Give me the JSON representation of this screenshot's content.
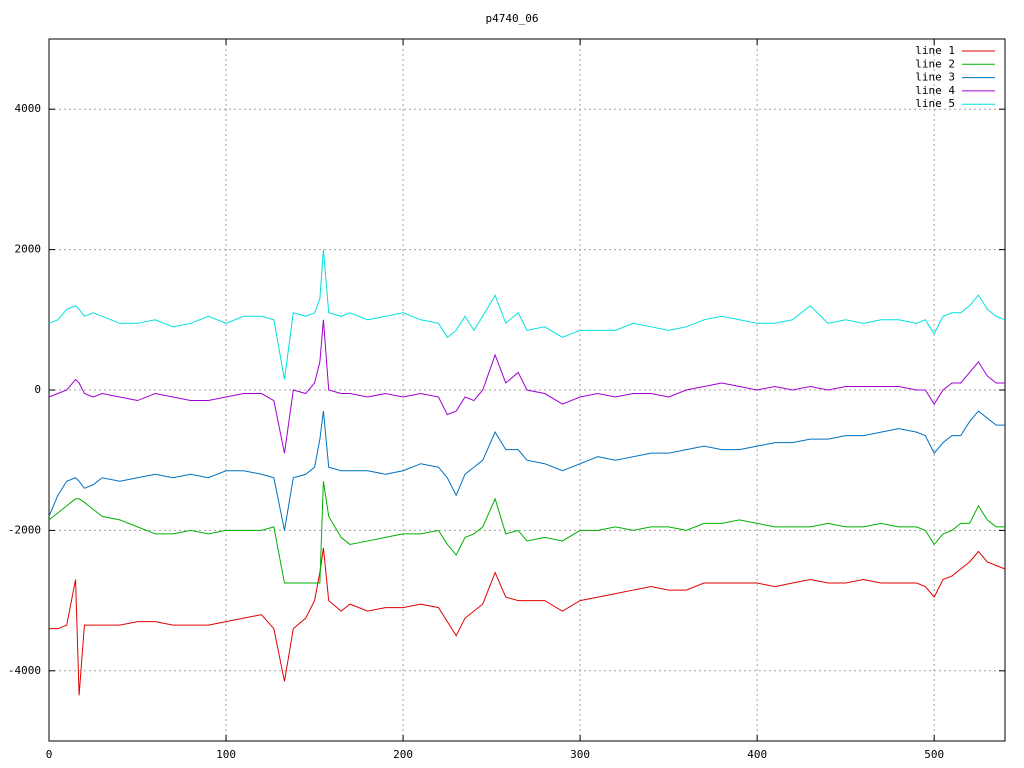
{
  "chart_data": {
    "type": "line",
    "title": "p4740_06",
    "x": [
      0,
      5,
      10,
      15,
      17,
      20,
      25,
      30,
      40,
      50,
      60,
      70,
      80,
      90,
      100,
      110,
      120,
      127,
      133,
      138,
      145,
      150,
      153,
      155,
      158,
      165,
      170,
      180,
      190,
      200,
      210,
      220,
      225,
      230,
      235,
      240,
      245,
      252,
      258,
      265,
      270,
      280,
      290,
      300,
      310,
      320,
      330,
      340,
      350,
      360,
      370,
      380,
      390,
      400,
      410,
      420,
      430,
      440,
      450,
      460,
      470,
      480,
      490,
      495,
      500,
      505,
      510,
      515,
      520,
      525,
      530,
      535,
      540
    ],
    "series": [
      {
        "name": "line 1",
        "color": "#e00000",
        "values": [
          -3400,
          -3400,
          -3350,
          -2700,
          -4350,
          -3350,
          -3350,
          -3350,
          -3350,
          -3300,
          -3300,
          -3350,
          -3350,
          -3350,
          -3300,
          -3250,
          -3200,
          -3400,
          -4150,
          -3400,
          -3250,
          -3000,
          -2600,
          -2250,
          -3000,
          -3150,
          -3050,
          -3150,
          -3100,
          -3100,
          -3050,
          -3100,
          -3300,
          -3500,
          -3250,
          -3150,
          -3050,
          -2600,
          -2950,
          -3000,
          -3000,
          -3000,
          -3150,
          -3000,
          -2950,
          -2900,
          -2850,
          -2800,
          -2850,
          -2850,
          -2750,
          -2750,
          -2750,
          -2750,
          -2800,
          -2750,
          -2700,
          -2750,
          -2750,
          -2700,
          -2750,
          -2750,
          -2750,
          -2800,
          -2950,
          -2700,
          -2650,
          -2550,
          -2450,
          -2300,
          -2450,
          -2500,
          -2550
        ]
      },
      {
        "name": "line 2",
        "color": "#00b000",
        "values": [
          -1850,
          -1750,
          -1650,
          -1550,
          -1550,
          -1600,
          -1700,
          -1800,
          -1850,
          -1950,
          -2050,
          -2050,
          -2000,
          -2050,
          -2000,
          -2000,
          -2000,
          -1950,
          -2750,
          -2750,
          -2750,
          -2750,
          -2750,
          -1300,
          -1800,
          -2100,
          -2200,
          -2150,
          -2100,
          -2050,
          -2050,
          -2000,
          -2200,
          -2350,
          -2100,
          -2050,
          -1950,
          -1550,
          -2050,
          -2000,
          -2150,
          -2100,
          -2150,
          -2000,
          -2000,
          -1950,
          -2000,
          -1950,
          -1950,
          -2000,
          -1900,
          -1900,
          -1850,
          -1900,
          -1950,
          -1950,
          -1950,
          -1900,
          -1950,
          -1950,
          -1900,
          -1950,
          -1950,
          -2000,
          -2200,
          -2050,
          -2000,
          -1900,
          -1900,
          -1650,
          -1850,
          -1950,
          -1950
        ]
      },
      {
        "name": "line 3",
        "color": "#0070c0",
        "values": [
          -1800,
          -1500,
          -1300,
          -1250,
          -1300,
          -1400,
          -1350,
          -1250,
          -1300,
          -1250,
          -1200,
          -1250,
          -1200,
          -1250,
          -1150,
          -1150,
          -1200,
          -1250,
          -2000,
          -1250,
          -1200,
          -1100,
          -700,
          -300,
          -1100,
          -1150,
          -1150,
          -1150,
          -1200,
          -1150,
          -1050,
          -1100,
          -1250,
          -1500,
          -1200,
          -1100,
          -1000,
          -600,
          -850,
          -850,
          -1000,
          -1050,
          -1150,
          -1050,
          -950,
          -1000,
          -950,
          -900,
          -900,
          -850,
          -800,
          -850,
          -850,
          -800,
          -750,
          -750,
          -700,
          -700,
          -650,
          -650,
          -600,
          -550,
          -600,
          -650,
          -900,
          -750,
          -650,
          -650,
          -450,
          -300,
          -400,
          -500,
          -500
        ]
      },
      {
        "name": "line 4",
        "color": "#a000d0",
        "values": [
          -100,
          -50,
          0,
          150,
          100,
          -50,
          -100,
          -50,
          -100,
          -150,
          -50,
          -100,
          -150,
          -150,
          -100,
          -50,
          -50,
          -150,
          -900,
          0,
          -50,
          100,
          400,
          1000,
          0,
          -50,
          -50,
          -100,
          -50,
          -100,
          -50,
          -100,
          -350,
          -300,
          -100,
          -150,
          0,
          500,
          100,
          250,
          0,
          -50,
          -200,
          -100,
          -50,
          -100,
          -50,
          -50,
          -100,
          0,
          50,
          100,
          50,
          0,
          50,
          0,
          50,
          0,
          50,
          50,
          50,
          50,
          0,
          0,
          -200,
          0,
          100,
          100,
          250,
          400,
          200,
          100,
          100
        ]
      },
      {
        "name": "line 5",
        "color": "#00e0e0",
        "values": [
          950,
          1000,
          1150,
          1200,
          1150,
          1050,
          1100,
          1050,
          950,
          950,
          1000,
          900,
          950,
          1050,
          950,
          1050,
          1050,
          1000,
          150,
          1100,
          1050,
          1100,
          1300,
          2000,
          1100,
          1050,
          1100,
          1000,
          1050,
          1100,
          1000,
          950,
          750,
          850,
          1050,
          850,
          1050,
          1350,
          950,
          1100,
          850,
          900,
          750,
          850,
          850,
          850,
          950,
          900,
          850,
          900,
          1000,
          1050,
          1000,
          950,
          950,
          1000,
          1200,
          950,
          1000,
          950,
          1000,
          1000,
          950,
          1000,
          800,
          1050,
          1100,
          1100,
          1200,
          1350,
          1150,
          1050,
          1000
        ]
      }
    ],
    "xlim": [
      0,
      540
    ],
    "xticks": [
      0,
      100,
      200,
      300,
      400,
      500
    ],
    "ylim": [
      -5000,
      5000
    ],
    "yticks": [
      -4000,
      -2000,
      0,
      2000,
      4000
    ],
    "grid": true,
    "legend": "top-right"
  }
}
